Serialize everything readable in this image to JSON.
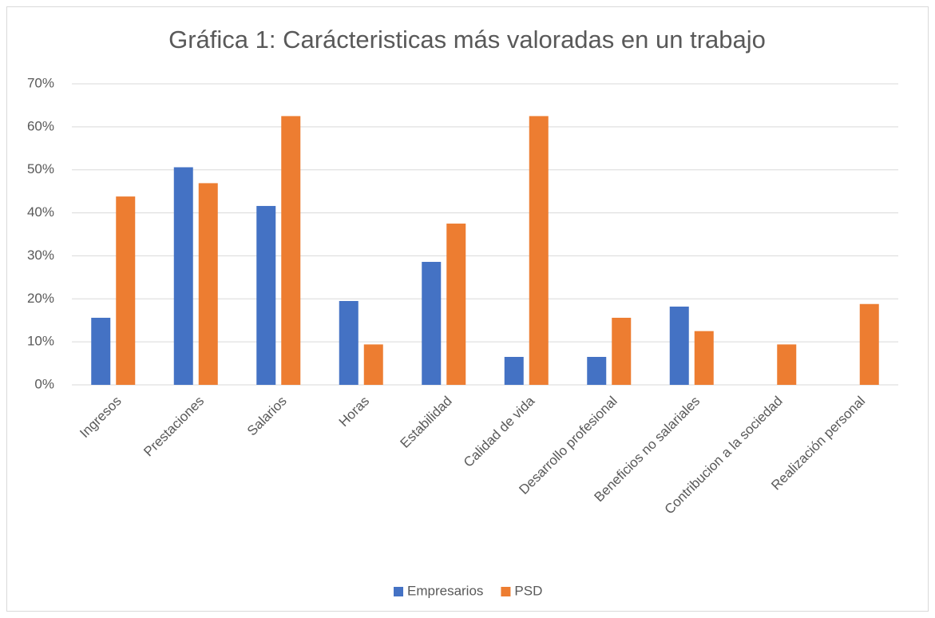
{
  "chart_data": {
    "type": "bar",
    "title": "Gráfica 1: Carácteristicas más valoradas en un trabajo",
    "categories": [
      "Ingresos",
      "Prestaciones",
      "Salarios",
      "Horas",
      "Estabilidad",
      "Calidad de vida",
      "Desarrollo profesional",
      "Beneficios no salariales",
      "Contribucion a la sociedad",
      "Realización personal"
    ],
    "series": [
      {
        "name": "Empresarios",
        "color": "#4472c4",
        "values": [
          15.6,
          50.6,
          41.6,
          19.5,
          28.6,
          6.5,
          6.5,
          18.2,
          0,
          0
        ]
      },
      {
        "name": "PSD",
        "color": "#ed7d31",
        "values": [
          43.8,
          46.9,
          62.5,
          9.4,
          37.5,
          62.5,
          15.6,
          12.5,
          9.4,
          18.8
        ]
      }
    ],
    "ylim": [
      0,
      70
    ],
    "yticks": [
      {
        "value": 0,
        "label": "0%"
      },
      {
        "value": 10,
        "label": "10%"
      },
      {
        "value": 20,
        "label": "20%"
      },
      {
        "value": 30,
        "label": "30%"
      },
      {
        "value": 40,
        "label": "40%"
      },
      {
        "value": 50,
        "label": "50%"
      },
      {
        "value": 60,
        "label": "60%"
      },
      {
        "value": 70,
        "label": "70%"
      }
    ],
    "grid": true,
    "legend": "bottom"
  }
}
